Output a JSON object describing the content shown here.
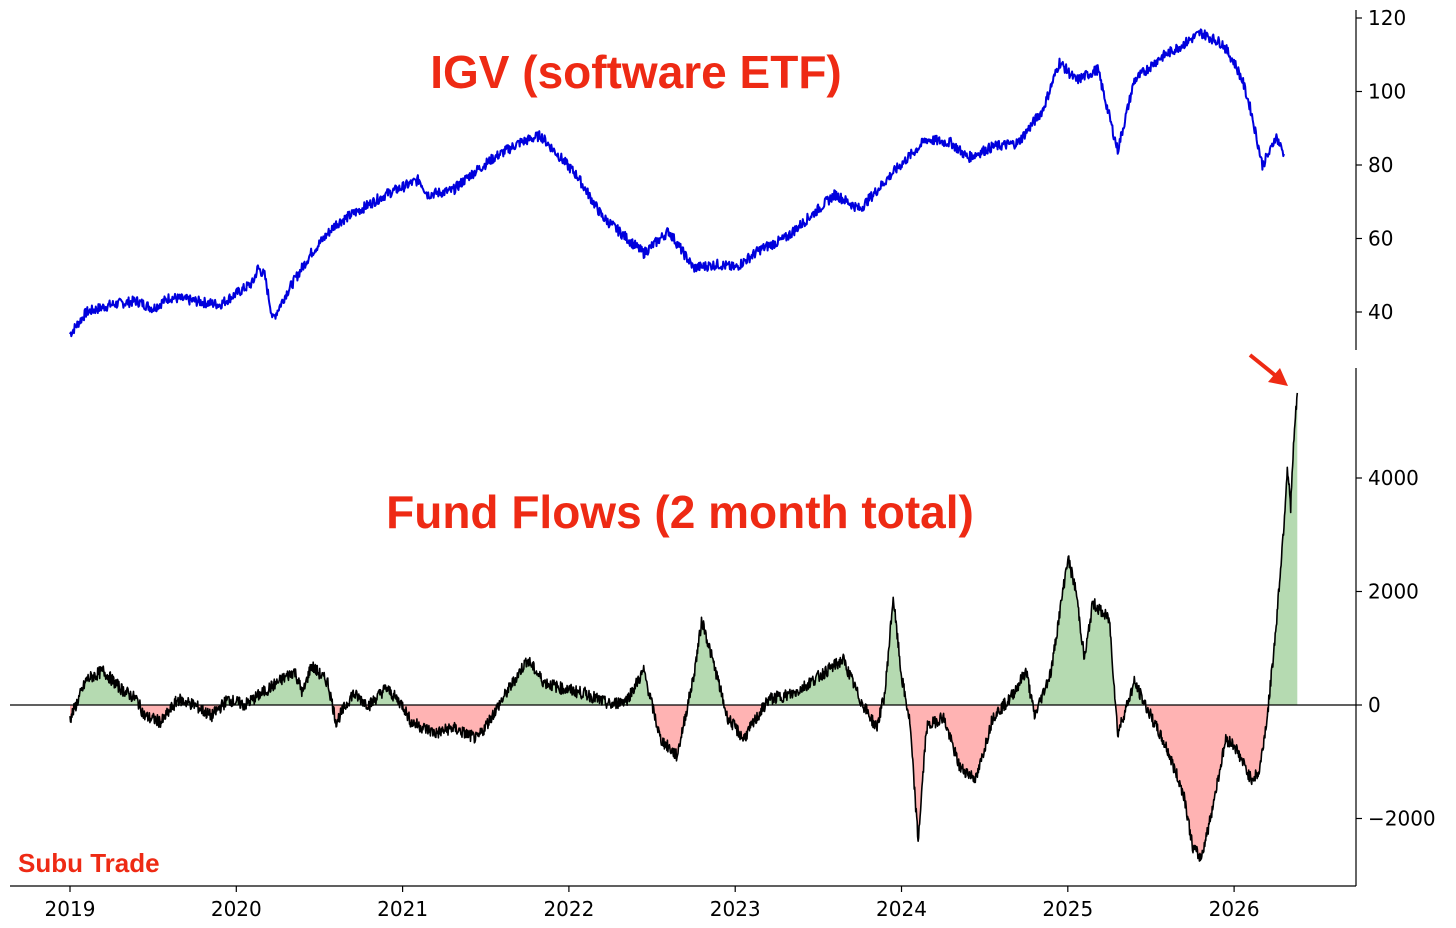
{
  "accent_color": "#ee2a14",
  "price_line_color": "#0000dd",
  "flow_line_color": "#000000",
  "positive_fill_color": "#b5dab1",
  "negative_fill_color": "#ffb3b3",
  "watermark": "Subu Trade",
  "chart_data": [
    {
      "type": "line",
      "title": "IGV (software ETF)",
      "xlabel": "",
      "ylabel": "",
      "xlim": [
        2019.0,
        2026.55
      ],
      "ylim": [
        30,
        122
      ],
      "yticks": [
        40,
        60,
        80,
        100,
        120
      ],
      "y_axis_side": "right",
      "grid": false,
      "series": [
        {
          "values": [
            [
              2019.0,
              34
            ],
            [
              2019.1,
              40
            ],
            [
              2019.25,
              42
            ],
            [
              2019.4,
              43
            ],
            [
              2019.5,
              41
            ],
            [
              2019.6,
              44
            ],
            [
              2019.75,
              43
            ],
            [
              2019.9,
              42
            ],
            [
              2020.0,
              45
            ],
            [
              2020.1,
              48
            ],
            [
              2020.13,
              52
            ],
            [
              2020.17,
              50
            ],
            [
              2020.22,
              38
            ],
            [
              2020.3,
              45
            ],
            [
              2020.45,
              56
            ],
            [
              2020.6,
              64
            ],
            [
              2020.75,
              68
            ],
            [
              2020.9,
              72
            ],
            [
              2021.1,
              76
            ],
            [
              2021.15,
              72
            ],
            [
              2021.3,
              73
            ],
            [
              2021.4,
              77
            ],
            [
              2021.55,
              82
            ],
            [
              2021.7,
              86
            ],
            [
              2021.83,
              88
            ],
            [
              2021.95,
              82
            ],
            [
              2022.05,
              77
            ],
            [
              2022.2,
              66
            ],
            [
              2022.35,
              60
            ],
            [
              2022.45,
              56
            ],
            [
              2022.6,
              62
            ],
            [
              2022.75,
              52
            ],
            [
              2022.9,
              53
            ],
            [
              2023.0,
              52
            ],
            [
              2023.15,
              57
            ],
            [
              2023.3,
              60
            ],
            [
              2023.45,
              66
            ],
            [
              2023.6,
              72
            ],
            [
              2023.75,
              68
            ],
            [
              2023.95,
              78
            ],
            [
              2024.15,
              87
            ],
            [
              2024.3,
              86
            ],
            [
              2024.4,
              82
            ],
            [
              2024.55,
              85
            ],
            [
              2024.7,
              86
            ],
            [
              2024.85,
              95
            ],
            [
              2024.95,
              108
            ],
            [
              2025.05,
              103
            ],
            [
              2025.18,
              106
            ],
            [
              2025.3,
              84
            ],
            [
              2025.4,
              103
            ],
            [
              2025.55,
              109
            ],
            [
              2025.7,
              113
            ],
            [
              2025.8,
              116
            ],
            [
              2025.93,
              113
            ],
            [
              2026.0,
              108
            ],
            [
              2026.05,
              103
            ],
            [
              2026.1,
              95
            ],
            [
              2026.17,
              80
            ],
            [
              2026.22,
              84
            ],
            [
              2026.25,
              88
            ],
            [
              2026.3,
              83
            ]
          ]
        }
      ]
    },
    {
      "type": "area",
      "title": "Fund Flows (2 month total)",
      "xlabel": "",
      "ylabel": "",
      "xlim": [
        2019.0,
        2026.55
      ],
      "ylim": [
        -3200,
        5900
      ],
      "yticks": [
        -2000,
        0,
        2000,
        4000
      ],
      "y_axis_side": "right",
      "baseline": 0,
      "grid": false,
      "x_tick_labels": [
        "2019",
        "2020",
        "2021",
        "2022",
        "2023",
        "2024",
        "2025",
        "2026"
      ],
      "series": [
        {
          "values": [
            [
              2019.0,
              -250
            ],
            [
              2019.05,
              100
            ],
            [
              2019.1,
              450
            ],
            [
              2019.2,
              600
            ],
            [
              2019.3,
              300
            ],
            [
              2019.4,
              100
            ],
            [
              2019.45,
              -200
            ],
            [
              2019.55,
              -300
            ],
            [
              2019.65,
              100
            ],
            [
              2019.75,
              0
            ],
            [
              2019.85,
              -200
            ],
            [
              2019.95,
              100
            ],
            [
              2020.05,
              0
            ],
            [
              2020.15,
              200
            ],
            [
              2020.25,
              400
            ],
            [
              2020.35,
              600
            ],
            [
              2020.4,
              200
            ],
            [
              2020.45,
              700
            ],
            [
              2020.55,
              400
            ],
            [
              2020.6,
              -300
            ],
            [
              2020.7,
              200
            ],
            [
              2020.8,
              0
            ],
            [
              2020.9,
              300
            ],
            [
              2021.0,
              0
            ],
            [
              2021.05,
              -300
            ],
            [
              2021.2,
              -500
            ],
            [
              2021.3,
              -400
            ],
            [
              2021.45,
              -600
            ],
            [
              2021.6,
              100
            ],
            [
              2021.75,
              800
            ],
            [
              2021.85,
              400
            ],
            [
              2021.95,
              300
            ],
            [
              2022.1,
              200
            ],
            [
              2022.25,
              0
            ],
            [
              2022.35,
              100
            ],
            [
              2022.45,
              600
            ],
            [
              2022.55,
              -600
            ],
            [
              2022.65,
              -900
            ],
            [
              2022.75,
              500
            ],
            [
              2022.8,
              1500
            ],
            [
              2022.9,
              400
            ],
            [
              2022.95,
              -200
            ],
            [
              2023.05,
              -600
            ],
            [
              2023.2,
              100
            ],
            [
              2023.35,
              200
            ],
            [
              2023.55,
              600
            ],
            [
              2023.65,
              800
            ],
            [
              2023.75,
              100
            ],
            [
              2023.85,
              -400
            ],
            [
              2023.9,
              200
            ],
            [
              2023.95,
              1900
            ],
            [
              2024.0,
              500
            ],
            [
              2024.05,
              -300
            ],
            [
              2024.1,
              -2400
            ],
            [
              2024.15,
              -400
            ],
            [
              2024.25,
              -200
            ],
            [
              2024.35,
              -1100
            ],
            [
              2024.45,
              -1300
            ],
            [
              2024.55,
              -200
            ],
            [
              2024.65,
              100
            ],
            [
              2024.75,
              600
            ],
            [
              2024.8,
              -200
            ],
            [
              2024.9,
              600
            ],
            [
              2025.0,
              2600
            ],
            [
              2025.05,
              2000
            ],
            [
              2025.1,
              800
            ],
            [
              2025.15,
              1800
            ],
            [
              2025.25,
              1500
            ],
            [
              2025.3,
              -500
            ],
            [
              2025.4,
              400
            ],
            [
              2025.5,
              -200
            ],
            [
              2025.6,
              -800
            ],
            [
              2025.7,
              -1600
            ],
            [
              2025.75,
              -2500
            ],
            [
              2025.8,
              -2700
            ],
            [
              2025.85,
              -2100
            ],
            [
              2025.95,
              -600
            ],
            [
              2026.0,
              -700
            ],
            [
              2026.1,
              -1300
            ],
            [
              2026.15,
              -1200
            ],
            [
              2026.2,
              -200
            ],
            [
              2026.25,
              1300
            ],
            [
              2026.3,
              3200
            ],
            [
              2026.32,
              4200
            ],
            [
              2026.34,
              3500
            ],
            [
              2026.36,
              4700
            ],
            [
              2026.38,
              5500
            ]
          ]
        }
      ]
    }
  ]
}
